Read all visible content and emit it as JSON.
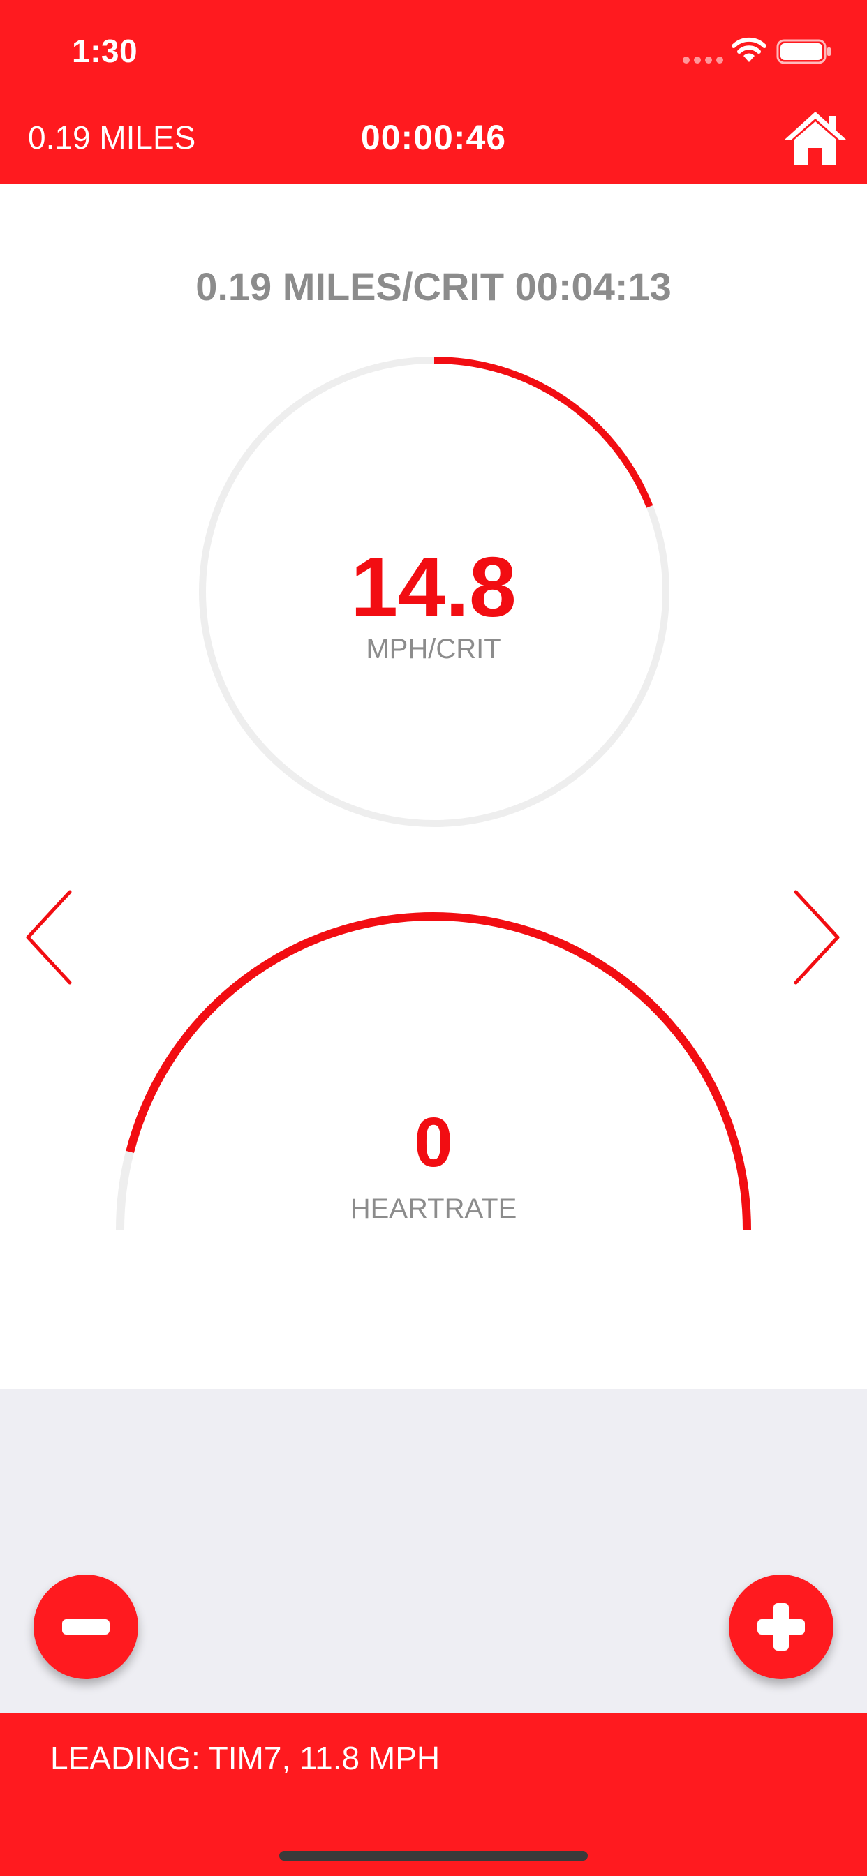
{
  "status_bar": {
    "time": "1:30"
  },
  "header": {
    "distance": "0.19 MILES",
    "elapsed_time": "00:00:46",
    "home_icon": "home-icon"
  },
  "lap": {
    "summary": "0.19 MILES/CRIT 00:04:13"
  },
  "speed_gauge": {
    "value": "14.8",
    "unit": "MPH/CRIT",
    "progress": 0.19
  },
  "heartrate_gauge": {
    "value": "0",
    "unit": "HEARTRATE",
    "progress": 0.92
  },
  "nav": {
    "prev_icon": "chevron-left-icon",
    "next_icon": "chevron-right-icon"
  },
  "controls": {
    "minus_icon": "minus-icon",
    "plus_icon": "plus-icon"
  },
  "footer": {
    "leader": "LEADING: TIM7, 11.8 MPH"
  },
  "colors": {
    "accent": "#ff1a1f",
    "gauge_fill": "#f20d12",
    "gauge_track": "#eeeeee",
    "muted_text": "#8c8c8c",
    "panel_bg": "#eeeef3"
  }
}
